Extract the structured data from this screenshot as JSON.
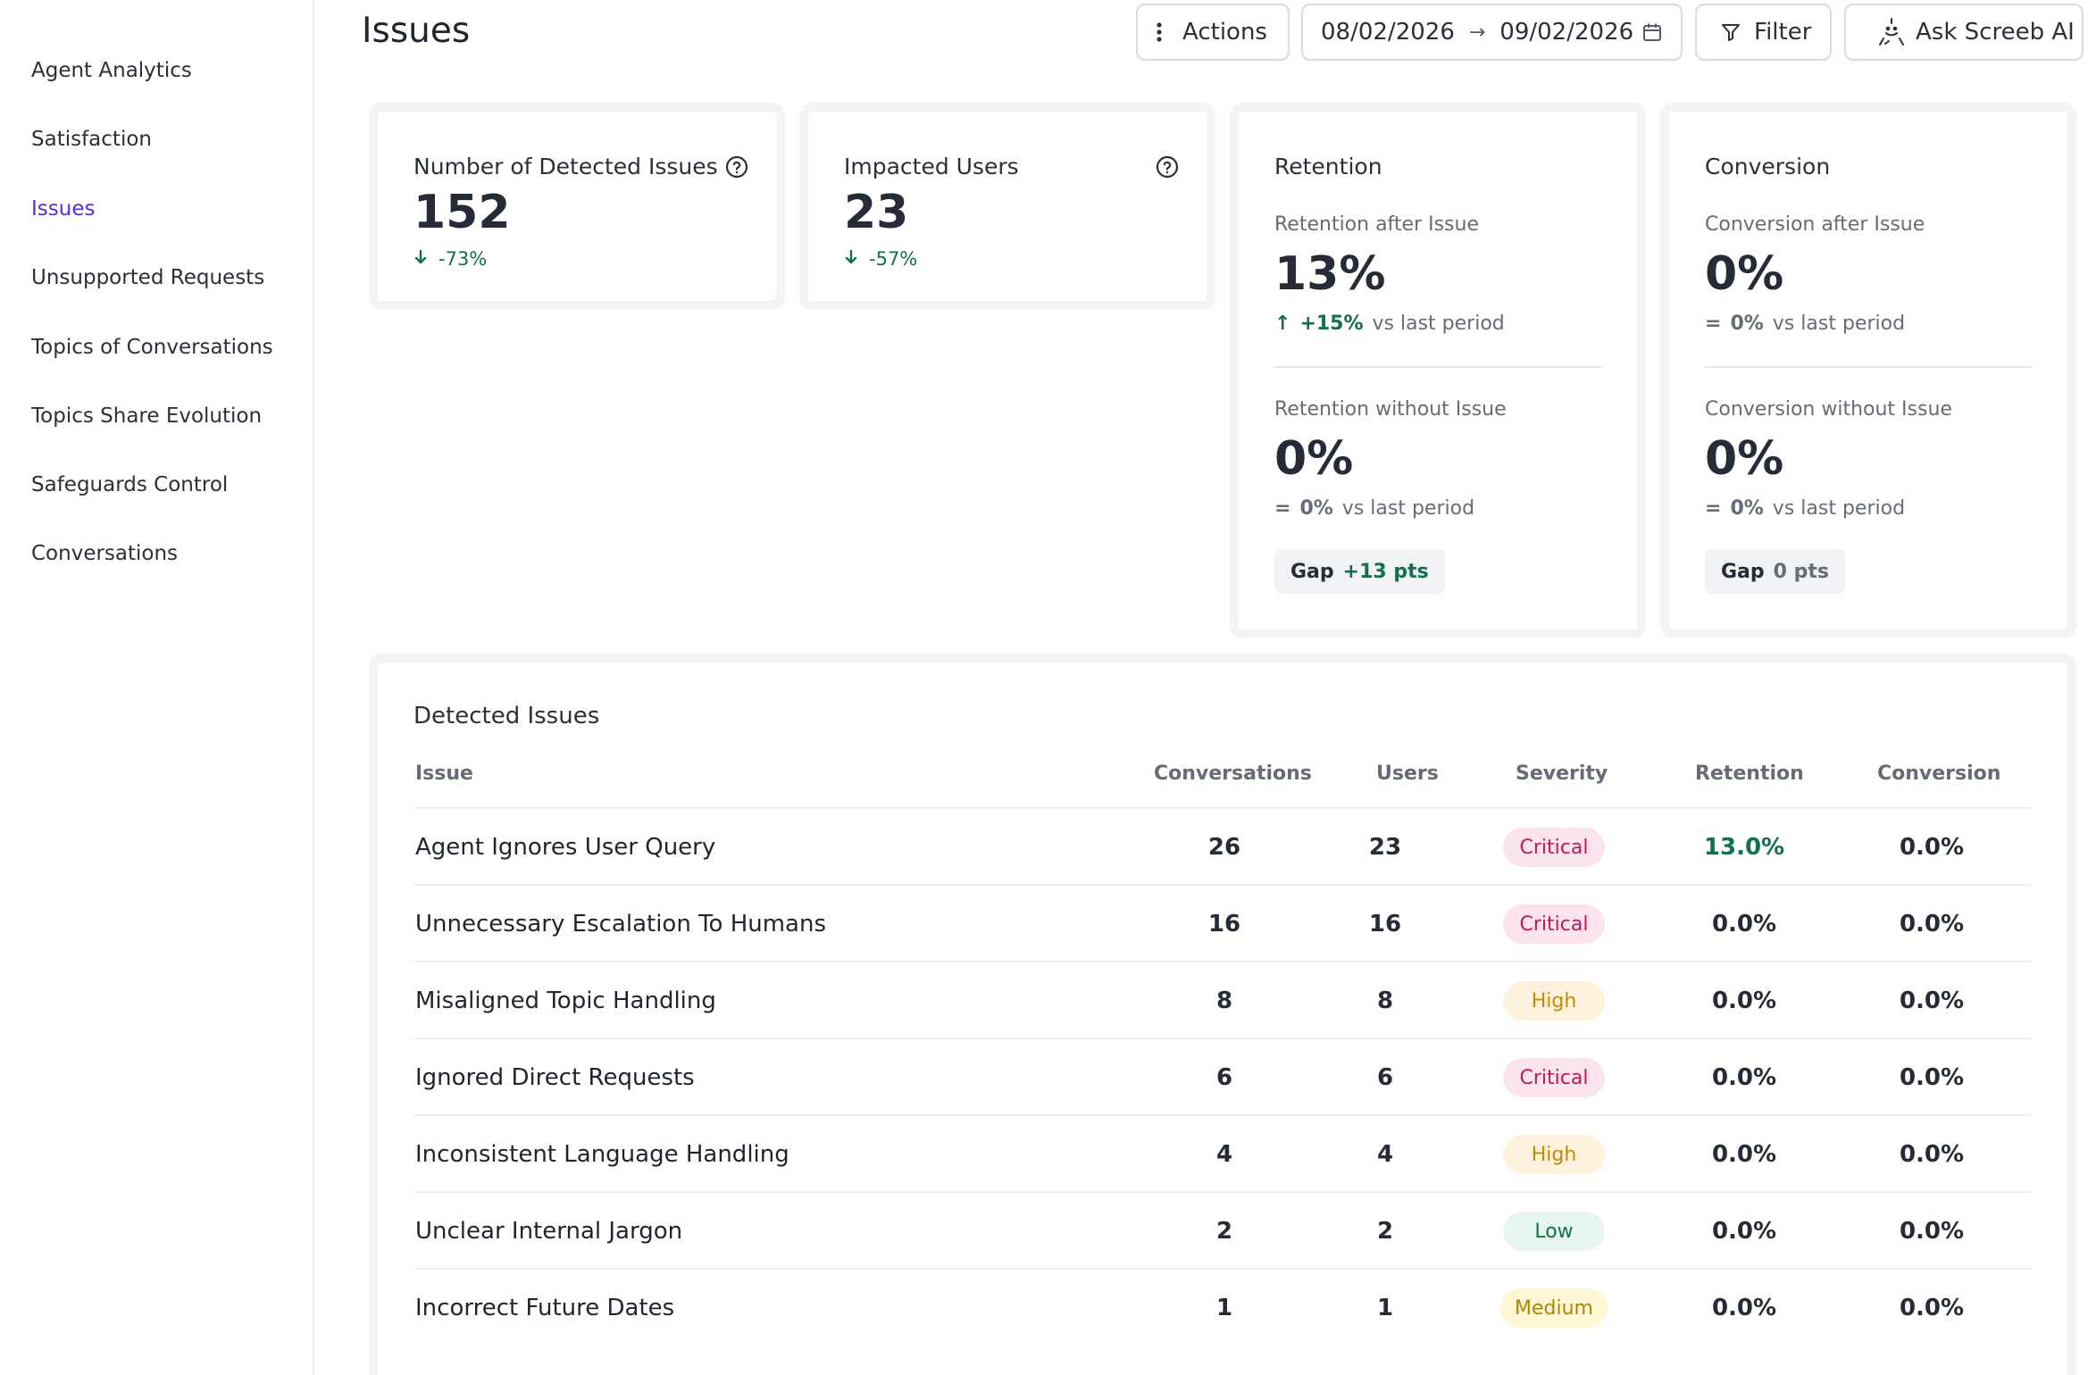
{
  "sidebar": {
    "items": [
      {
        "label": "Agent Analytics",
        "active": false
      },
      {
        "label": "Satisfaction",
        "active": false
      },
      {
        "label": "Issues",
        "active": true
      },
      {
        "label": "Unsupported Requests",
        "active": false
      },
      {
        "label": "Topics of Conversations",
        "active": false
      },
      {
        "label": "Topics Share Evolution",
        "active": false
      },
      {
        "label": "Safeguards Control",
        "active": false
      },
      {
        "label": "Conversations",
        "active": false
      }
    ]
  },
  "header": {
    "title": "Issues",
    "actions_label": "Actions",
    "date_start": "08/02/2026",
    "date_arrow": "→",
    "date_end": "09/02/2026",
    "filter_label": "Filter",
    "ask_label": "Ask Screeb AI"
  },
  "kpis": {
    "detected": {
      "title": "Number of Detected Issues",
      "value": "152",
      "delta": "-73%",
      "direction": "down"
    },
    "impacted": {
      "title": "Impacted Users",
      "value": "23",
      "delta": "-57%",
      "direction": "down"
    }
  },
  "retention": {
    "title": "Retention",
    "after_label": "Retention after Issue",
    "after_value": "13%",
    "after_delta": "+15%",
    "after_glyph": "↑",
    "vs_label": "vs last period",
    "without_label": "Retention without Issue",
    "without_value": "0%",
    "without_delta": "0%",
    "without_glyph": "=",
    "gap_label": "Gap",
    "gap_value": "+13 pts"
  },
  "conversion": {
    "title": "Conversion",
    "after_label": "Conversion after Issue",
    "after_value": "0%",
    "after_delta": "0%",
    "after_glyph": "=",
    "vs_label": "vs last period",
    "without_label": "Conversion without Issue",
    "without_value": "0%",
    "without_delta": "0%",
    "without_glyph": "=",
    "gap_label": "Gap",
    "gap_value": "0 pts"
  },
  "issues_table": {
    "title": "Detected Issues",
    "columns": [
      "Issue",
      "Conversations",
      "Users",
      "Severity",
      "Retention",
      "Conversion"
    ],
    "rows": [
      {
        "issue": "Agent Ignores User Query",
        "conversations": "26",
        "users": "23",
        "severity": "Critical",
        "retention": "13.0%",
        "conversion": "0.0%"
      },
      {
        "issue": "Unnecessary Escalation To Humans",
        "conversations": "16",
        "users": "16",
        "severity": "Critical",
        "retention": "0.0%",
        "conversion": "0.0%"
      },
      {
        "issue": "Misaligned Topic Handling",
        "conversations": "8",
        "users": "8",
        "severity": "High",
        "retention": "0.0%",
        "conversion": "0.0%"
      },
      {
        "issue": "Ignored Direct Requests",
        "conversations": "6",
        "users": "6",
        "severity": "Critical",
        "retention": "0.0%",
        "conversion": "0.0%"
      },
      {
        "issue": "Inconsistent Language Handling",
        "conversations": "4",
        "users": "4",
        "severity": "High",
        "retention": "0.0%",
        "conversion": "0.0%"
      },
      {
        "issue": "Unclear Internal Jargon",
        "conversations": "2",
        "users": "2",
        "severity": "Low",
        "retention": "0.0%",
        "conversion": "0.0%"
      },
      {
        "issue": "Incorrect Future Dates",
        "conversations": "1",
        "users": "1",
        "severity": "Medium",
        "retention": "0.0%",
        "conversion": "0.0%"
      }
    ]
  },
  "colors": {
    "accent": "#5b2bd6",
    "positive": "#12704a",
    "critical": "#c2185b",
    "high": "#c68a00",
    "low": "#12704a"
  }
}
